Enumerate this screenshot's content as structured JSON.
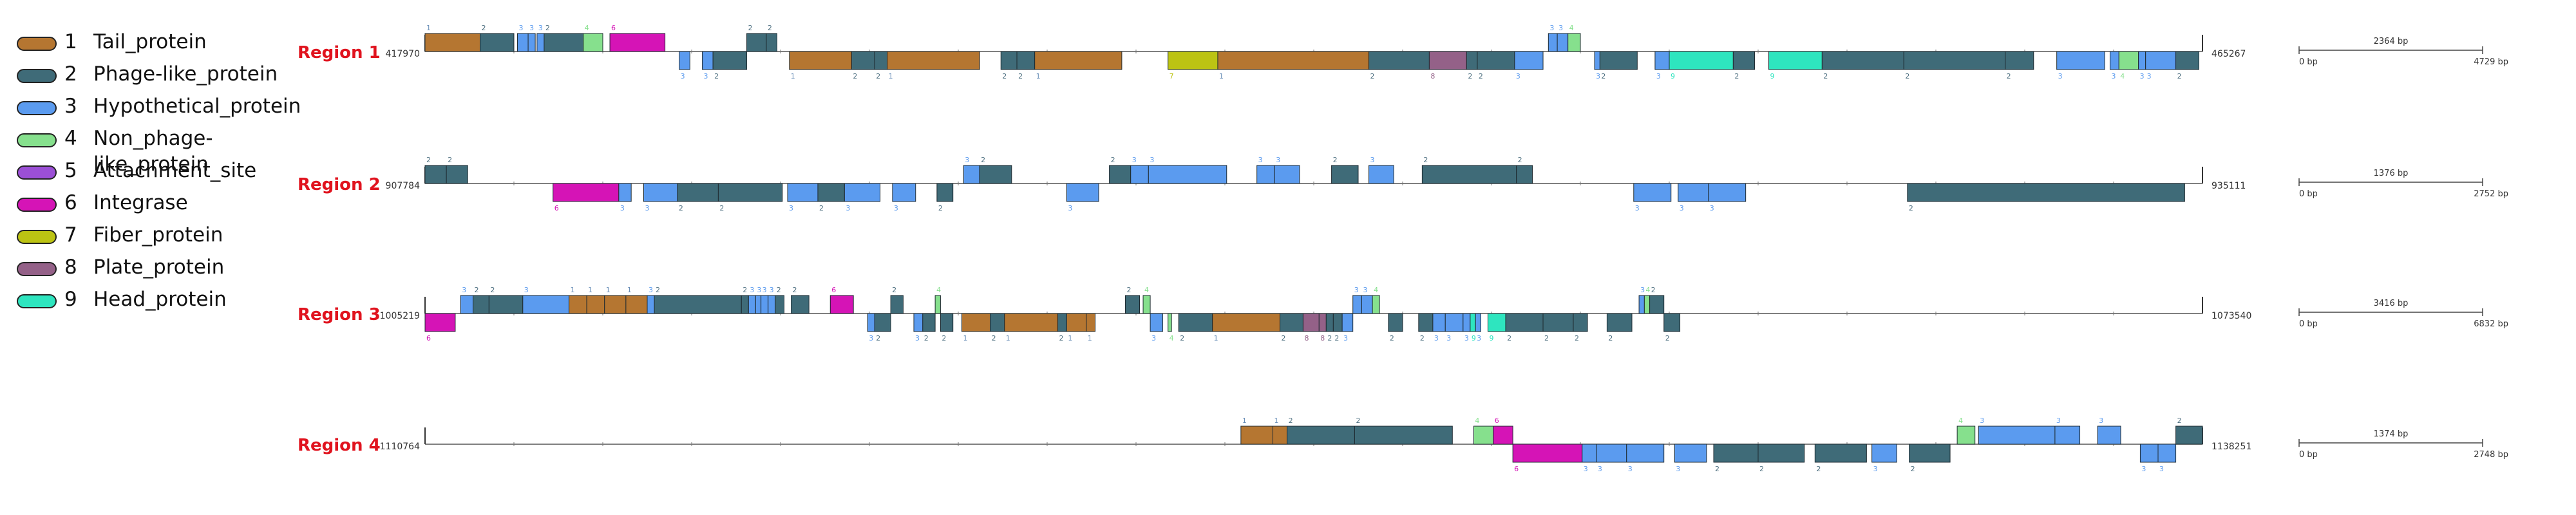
{
  "legend": [
    {
      "num": "1",
      "name": "Tail_protein",
      "color": "#b57631",
      "icon": "rounded-swatch"
    },
    {
      "num": "2",
      "name": "Phage-like_protein",
      "color": "#3f6b78",
      "icon": "rounded-swatch"
    },
    {
      "num": "3",
      "name": "Hypothetical_protein",
      "color": "#5b9bef",
      "icon": "rounded-swatch"
    },
    {
      "num": "4",
      "name": "Non_phage-like_protein",
      "color": "#86e08d",
      "icon": "rounded-swatch"
    },
    {
      "num": "5",
      "name": "Attachment_site",
      "color": "#9b4fd6",
      "icon": "rounded-swatch"
    },
    {
      "num": "6",
      "name": "Integrase",
      "color": "#d514b6",
      "icon": "rounded-swatch"
    },
    {
      "num": "7",
      "name": "Fiber_protein",
      "color": "#bcc313",
      "icon": "rounded-swatch"
    },
    {
      "num": "8",
      "name": "Plate_protein",
      "color": "#946188",
      "icon": "rounded-swatch"
    },
    {
      "num": "9",
      "name": "Head_protein",
      "color": "#2ee5bf",
      "icon": "rounded-swatch"
    }
  ],
  "regions": [
    {
      "name": "Region 1",
      "start": "417970",
      "end": "465267",
      "scale": {
        "label": "2364 bp",
        "min": "0 bp",
        "max": "4729 bp"
      },
      "genes": [
        {
          "s": 0.0,
          "e": 0.031,
          "t": 1,
          "strand": "+"
        },
        {
          "s": 0.031,
          "e": 0.05,
          "t": 2,
          "strand": "+"
        },
        {
          "s": 0.052,
          "e": 0.058,
          "t": 3,
          "strand": "+"
        },
        {
          "s": 0.058,
          "e": 0.062,
          "t": 3,
          "strand": "+"
        },
        {
          "s": 0.063,
          "e": 0.067,
          "t": 3,
          "strand": "+"
        },
        {
          "s": 0.067,
          "e": 0.089,
          "t": 2,
          "strand": "+"
        },
        {
          "s": 0.089,
          "e": 0.1,
          "t": 4,
          "strand": "+"
        },
        {
          "s": 0.104,
          "e": 0.135,
          "t": 6,
          "strand": "+"
        },
        {
          "s": 0.143,
          "e": 0.149,
          "t": 3,
          "strand": "-"
        },
        {
          "s": 0.156,
          "e": 0.162,
          "t": 3,
          "strand": "-"
        },
        {
          "s": 0.162,
          "e": 0.181,
          "t": 2,
          "strand": "-"
        },
        {
          "s": 0.181,
          "e": 0.192,
          "t": 2,
          "strand": "+"
        },
        {
          "s": 0.192,
          "e": 0.198,
          "t": 2,
          "strand": "+"
        },
        {
          "s": 0.205,
          "e": 0.24,
          "t": 1,
          "strand": "-"
        },
        {
          "s": 0.24,
          "e": 0.253,
          "t": 2,
          "strand": "-"
        },
        {
          "s": 0.253,
          "e": 0.26,
          "t": 2,
          "strand": "-"
        },
        {
          "s": 0.26,
          "e": 0.312,
          "t": 1,
          "strand": "-"
        },
        {
          "s": 0.324,
          "e": 0.333,
          "t": 2,
          "strand": "-"
        },
        {
          "s": 0.333,
          "e": 0.343,
          "t": 2,
          "strand": "-"
        },
        {
          "s": 0.343,
          "e": 0.392,
          "t": 1,
          "strand": "-"
        },
        {
          "s": 0.418,
          "e": 0.446,
          "t": 7,
          "strand": "-"
        },
        {
          "s": 0.446,
          "e": 0.531,
          "t": 1,
          "strand": "-"
        },
        {
          "s": 0.531,
          "e": 0.565,
          "t": 2,
          "strand": "-"
        },
        {
          "s": 0.565,
          "e": 0.586,
          "t": 8,
          "strand": "-"
        },
        {
          "s": 0.586,
          "e": 0.592,
          "t": 2,
          "strand": "-"
        },
        {
          "s": 0.592,
          "e": 0.613,
          "t": 2,
          "strand": "-"
        },
        {
          "s": 0.613,
          "e": 0.629,
          "t": 3,
          "strand": "-"
        },
        {
          "s": 0.632,
          "e": 0.637,
          "t": 3,
          "strand": "+"
        },
        {
          "s": 0.637,
          "e": 0.643,
          "t": 3,
          "strand": "+"
        },
        {
          "s": 0.643,
          "e": 0.65,
          "t": 4,
          "strand": "+"
        },
        {
          "s": 0.658,
          "e": 0.661,
          "t": 3,
          "strand": "-"
        },
        {
          "s": 0.661,
          "e": 0.682,
          "t": 2,
          "strand": "-"
        },
        {
          "s": 0.692,
          "e": 0.7,
          "t": 3,
          "strand": "-"
        },
        {
          "s": 0.7,
          "e": 0.736,
          "t": 9,
          "strand": "-"
        },
        {
          "s": 0.736,
          "e": 0.748,
          "t": 2,
          "strand": "-"
        },
        {
          "s": 0.756,
          "e": 0.786,
          "t": 9,
          "strand": "-"
        },
        {
          "s": 0.786,
          "e": 0.832,
          "t": 2,
          "strand": "-"
        },
        {
          "s": 0.832,
          "e": 0.889,
          "t": 2,
          "strand": "-"
        },
        {
          "s": 0.889,
          "e": 0.905,
          "t": 2,
          "strand": "-"
        },
        {
          "s": 0.918,
          "e": 0.945,
          "t": 3,
          "strand": "-"
        },
        {
          "s": 0.948,
          "e": 0.953,
          "t": 3,
          "strand": "-"
        },
        {
          "s": 0.953,
          "e": 0.964,
          "t": 4,
          "strand": "-"
        },
        {
          "s": 0.964,
          "e": 0.968,
          "t": 3,
          "strand": "-"
        },
        {
          "s": 0.968,
          "e": 0.985,
          "t": 3,
          "strand": "-"
        },
        {
          "s": 0.985,
          "e": 0.998,
          "t": 2,
          "strand": "-"
        }
      ]
    },
    {
      "name": "Region 2",
      "start": "907784",
      "end": "935111",
      "scale": {
        "label": "1376 bp",
        "min": "0 bp",
        "max": "2752 bp"
      },
      "genes": [
        {
          "s": 0.0,
          "e": 0.012,
          "t": 2,
          "strand": "+"
        },
        {
          "s": 0.012,
          "e": 0.024,
          "t": 2,
          "strand": "+"
        },
        {
          "s": 0.072,
          "e": 0.109,
          "t": 6,
          "strand": "-"
        },
        {
          "s": 0.109,
          "e": 0.116,
          "t": 3,
          "strand": "-"
        },
        {
          "s": 0.123,
          "e": 0.142,
          "t": 3,
          "strand": "-"
        },
        {
          "s": 0.142,
          "e": 0.165,
          "t": 2,
          "strand": "-"
        },
        {
          "s": 0.165,
          "e": 0.201,
          "t": 2,
          "strand": "-"
        },
        {
          "s": 0.204,
          "e": 0.221,
          "t": 3,
          "strand": "-"
        },
        {
          "s": 0.221,
          "e": 0.236,
          "t": 2,
          "strand": "-"
        },
        {
          "s": 0.236,
          "e": 0.256,
          "t": 3,
          "strand": "-"
        },
        {
          "s": 0.263,
          "e": 0.276,
          "t": 3,
          "strand": "-"
        },
        {
          "s": 0.288,
          "e": 0.297,
          "t": 2,
          "strand": "-"
        },
        {
          "s": 0.303,
          "e": 0.312,
          "t": 3,
          "strand": "+"
        },
        {
          "s": 0.312,
          "e": 0.33,
          "t": 2,
          "strand": "+"
        },
        {
          "s": 0.361,
          "e": 0.379,
          "t": 3,
          "strand": "-"
        },
        {
          "s": 0.385,
          "e": 0.397,
          "t": 2,
          "strand": "+"
        },
        {
          "s": 0.397,
          "e": 0.407,
          "t": 3,
          "strand": "+"
        },
        {
          "s": 0.407,
          "e": 0.451,
          "t": 3,
          "strand": "+"
        },
        {
          "s": 0.468,
          "e": 0.478,
          "t": 3,
          "strand": "+"
        },
        {
          "s": 0.478,
          "e": 0.492,
          "t": 3,
          "strand": "+"
        },
        {
          "s": 0.51,
          "e": 0.525,
          "t": 2,
          "strand": "+"
        },
        {
          "s": 0.531,
          "e": 0.545,
          "t": 3,
          "strand": "+"
        },
        {
          "s": 0.561,
          "e": 0.614,
          "t": 2,
          "strand": "+"
        },
        {
          "s": 0.614,
          "e": 0.623,
          "t": 2,
          "strand": "+"
        },
        {
          "s": 0.68,
          "e": 0.701,
          "t": 3,
          "strand": "-"
        },
        {
          "s": 0.705,
          "e": 0.722,
          "t": 3,
          "strand": "-"
        },
        {
          "s": 0.722,
          "e": 0.743,
          "t": 3,
          "strand": "-"
        },
        {
          "s": 0.834,
          "e": 0.99,
          "t": 2,
          "strand": "-"
        }
      ]
    },
    {
      "name": "Region 3",
      "start": "1005219",
      "end": "1073540",
      "scale": {
        "label": "3416 bp",
        "min": "0 bp",
        "max": "6832 bp"
      },
      "genes": [
        {
          "s": 0.0,
          "e": 0.017,
          "t": 6,
          "strand": "-"
        },
        {
          "s": 0.02,
          "e": 0.027,
          "t": 3,
          "strand": "+"
        },
        {
          "s": 0.027,
          "e": 0.036,
          "t": 2,
          "strand": "+"
        },
        {
          "s": 0.036,
          "e": 0.055,
          "t": 2,
          "strand": "+"
        },
        {
          "s": 0.055,
          "e": 0.081,
          "t": 3,
          "strand": "+"
        },
        {
          "s": 0.081,
          "e": 0.091,
          "t": 1,
          "strand": "+"
        },
        {
          "s": 0.091,
          "e": 0.101,
          "t": 1,
          "strand": "+"
        },
        {
          "s": 0.101,
          "e": 0.113,
          "t": 1,
          "strand": "+"
        },
        {
          "s": 0.113,
          "e": 0.125,
          "t": 1,
          "strand": "+"
        },
        {
          "s": 0.125,
          "e": 0.129,
          "t": 3,
          "strand": "+"
        },
        {
          "s": 0.129,
          "e": 0.178,
          "t": 2,
          "strand": "+"
        },
        {
          "s": 0.178,
          "e": 0.182,
          "t": 2,
          "strand": "+"
        },
        {
          "s": 0.182,
          "e": 0.186,
          "t": 3,
          "strand": "+"
        },
        {
          "s": 0.186,
          "e": 0.189,
          "t": 3,
          "strand": "+"
        },
        {
          "s": 0.189,
          "e": 0.193,
          "t": 3,
          "strand": "+"
        },
        {
          "s": 0.193,
          "e": 0.197,
          "t": 3,
          "strand": "+"
        },
        {
          "s": 0.197,
          "e": 0.202,
          "t": 2,
          "strand": "+"
        },
        {
          "s": 0.206,
          "e": 0.216,
          "t": 2,
          "strand": "+"
        },
        {
          "s": 0.228,
          "e": 0.241,
          "t": 6,
          "strand": "+"
        },
        {
          "s": 0.249,
          "e": 0.253,
          "t": 3,
          "strand": "-"
        },
        {
          "s": 0.253,
          "e": 0.262,
          "t": 2,
          "strand": "-"
        },
        {
          "s": 0.262,
          "e": 0.269,
          "t": 2,
          "strand": "+"
        },
        {
          "s": 0.275,
          "e": 0.28,
          "t": 3,
          "strand": "-"
        },
        {
          "s": 0.28,
          "e": 0.287,
          "t": 2,
          "strand": "-"
        },
        {
          "s": 0.287,
          "e": 0.29,
          "t": 4,
          "strand": "+"
        },
        {
          "s": 0.29,
          "e": 0.297,
          "t": 2,
          "strand": "-"
        },
        {
          "s": 0.302,
          "e": 0.318,
          "t": 1,
          "strand": "-"
        },
        {
          "s": 0.318,
          "e": 0.326,
          "t": 2,
          "strand": "-"
        },
        {
          "s": 0.326,
          "e": 0.356,
          "t": 1,
          "strand": "-"
        },
        {
          "s": 0.356,
          "e": 0.361,
          "t": 2,
          "strand": "-"
        },
        {
          "s": 0.361,
          "e": 0.372,
          "t": 1,
          "strand": "-"
        },
        {
          "s": 0.372,
          "e": 0.377,
          "t": 1,
          "strand": "-"
        },
        {
          "s": 0.394,
          "e": 0.402,
          "t": 2,
          "strand": "+"
        },
        {
          "s": 0.404,
          "e": 0.408,
          "t": 4,
          "strand": "+"
        },
        {
          "s": 0.408,
          "e": 0.415,
          "t": 3,
          "strand": "-"
        },
        {
          "s": 0.418,
          "e": 0.42,
          "t": 4,
          "strand": "-"
        },
        {
          "s": 0.424,
          "e": 0.443,
          "t": 2,
          "strand": "-"
        },
        {
          "s": 0.443,
          "e": 0.481,
          "t": 1,
          "strand": "-"
        },
        {
          "s": 0.481,
          "e": 0.494,
          "t": 2,
          "strand": "-"
        },
        {
          "s": 0.494,
          "e": 0.503,
          "t": 8,
          "strand": "-"
        },
        {
          "s": 0.503,
          "e": 0.507,
          "t": 8,
          "strand": "-"
        },
        {
          "s": 0.507,
          "e": 0.511,
          "t": 2,
          "strand": "-"
        },
        {
          "s": 0.511,
          "e": 0.516,
          "t": 2,
          "strand": "-"
        },
        {
          "s": 0.516,
          "e": 0.522,
          "t": 3,
          "strand": "-"
        },
        {
          "s": 0.522,
          "e": 0.527,
          "t": 3,
          "strand": "+"
        },
        {
          "s": 0.527,
          "e": 0.533,
          "t": 3,
          "strand": "+"
        },
        {
          "s": 0.533,
          "e": 0.537,
          "t": 4,
          "strand": "+"
        },
        {
          "s": 0.542,
          "e": 0.55,
          "t": 2,
          "strand": "-"
        },
        {
          "s": 0.559,
          "e": 0.567,
          "t": 2,
          "strand": "-"
        },
        {
          "s": 0.567,
          "e": 0.574,
          "t": 3,
          "strand": "-"
        },
        {
          "s": 0.574,
          "e": 0.584,
          "t": 3,
          "strand": "-"
        },
        {
          "s": 0.584,
          "e": 0.588,
          "t": 3,
          "strand": "-"
        },
        {
          "s": 0.588,
          "e": 0.591,
          "t": 9,
          "strand": "-"
        },
        {
          "s": 0.591,
          "e": 0.594,
          "t": 3,
          "strand": "-"
        },
        {
          "s": 0.598,
          "e": 0.608,
          "t": 9,
          "strand": "-"
        },
        {
          "s": 0.608,
          "e": 0.629,
          "t": 2,
          "strand": "-"
        },
        {
          "s": 0.629,
          "e": 0.646,
          "t": 2,
          "strand": "-"
        },
        {
          "s": 0.646,
          "e": 0.654,
          "t": 2,
          "strand": "-"
        },
        {
          "s": 0.665,
          "e": 0.679,
          "t": 2,
          "strand": "-"
        },
        {
          "s": 0.683,
          "e": 0.686,
          "t": 3,
          "strand": "+"
        },
        {
          "s": 0.686,
          "e": 0.689,
          "t": 4,
          "strand": "+"
        },
        {
          "s": 0.689,
          "e": 0.697,
          "t": 2,
          "strand": "+"
        },
        {
          "s": 0.697,
          "e": 0.706,
          "t": 2,
          "strand": "-"
        }
      ]
    },
    {
      "name": "Region 4",
      "start": "1110764",
      "end": "1138251",
      "scale": {
        "label": "1374 bp",
        "min": "0 bp",
        "max": "2748 bp"
      },
      "genes": [
        {
          "s": 0.459,
          "e": 0.477,
          "t": 1,
          "strand": "+"
        },
        {
          "s": 0.477,
          "e": 0.485,
          "t": 1,
          "strand": "+"
        },
        {
          "s": 0.485,
          "e": 0.523,
          "t": 2,
          "strand": "+"
        },
        {
          "s": 0.523,
          "e": 0.578,
          "t": 2,
          "strand": "+"
        },
        {
          "s": 0.59,
          "e": 0.601,
          "t": 4,
          "strand": "+"
        },
        {
          "s": 0.601,
          "e": 0.612,
          "t": 6,
          "strand": "+"
        },
        {
          "s": 0.612,
          "e": 0.651,
          "t": 6,
          "strand": "-"
        },
        {
          "s": 0.651,
          "e": 0.659,
          "t": 3,
          "strand": "-"
        },
        {
          "s": 0.659,
          "e": 0.676,
          "t": 3,
          "strand": "-"
        },
        {
          "s": 0.676,
          "e": 0.697,
          "t": 3,
          "strand": "-"
        },
        {
          "s": 0.703,
          "e": 0.721,
          "t": 3,
          "strand": "-"
        },
        {
          "s": 0.725,
          "e": 0.75,
          "t": 2,
          "strand": "-"
        },
        {
          "s": 0.75,
          "e": 0.776,
          "t": 2,
          "strand": "-"
        },
        {
          "s": 0.782,
          "e": 0.811,
          "t": 2,
          "strand": "-"
        },
        {
          "s": 0.814,
          "e": 0.828,
          "t": 3,
          "strand": "-"
        },
        {
          "s": 0.835,
          "e": 0.858,
          "t": 2,
          "strand": "-"
        },
        {
          "s": 0.862,
          "e": 0.872,
          "t": 4,
          "strand": "+"
        },
        {
          "s": 0.874,
          "e": 0.917,
          "t": 3,
          "strand": "+"
        },
        {
          "s": 0.917,
          "e": 0.931,
          "t": 3,
          "strand": "+"
        },
        {
          "s": 0.941,
          "e": 0.954,
          "t": 3,
          "strand": "+"
        },
        {
          "s": 0.965,
          "e": 0.975,
          "t": 3,
          "strand": "-"
        },
        {
          "s": 0.975,
          "e": 0.985,
          "t": 3,
          "strand": "-"
        },
        {
          "s": 0.985,
          "e": 1.0,
          "t": 2,
          "strand": "+"
        }
      ]
    }
  ]
}
